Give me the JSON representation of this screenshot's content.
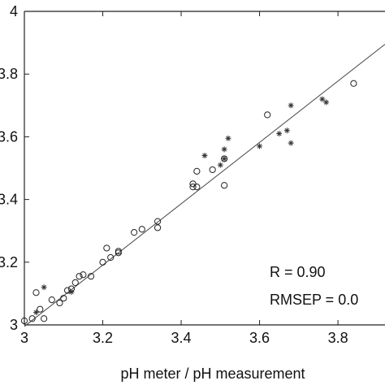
{
  "chart_data": {
    "type": "scatter",
    "title": "",
    "xlabel": "pH meter / pH measurement",
    "ylabel": "",
    "xlim": [
      3.0,
      3.92
    ],
    "ylim": [
      3.0,
      4.0
    ],
    "x_ticks": [
      "3",
      "3.2",
      "3.4",
      "3.6",
      "3.8"
    ],
    "y_ticks": [
      "3",
      "3.2",
      "3.4",
      "3.6",
      "3.8",
      "4"
    ],
    "grid": false,
    "series": [
      {
        "marker": "circle",
        "points": [
          [
            3.0,
            3.013
          ],
          [
            3.02,
            3.02
          ],
          [
            3.03,
            3.103
          ],
          [
            3.04,
            3.05
          ],
          [
            3.05,
            3.02
          ],
          [
            3.07,
            3.08
          ],
          [
            3.09,
            3.07
          ],
          [
            3.1,
            3.085
          ],
          [
            3.11,
            3.11
          ],
          [
            3.12,
            3.115
          ],
          [
            3.13,
            3.135
          ],
          [
            3.14,
            3.155
          ],
          [
            3.15,
            3.16
          ],
          [
            3.17,
            3.155
          ],
          [
            3.2,
            3.2
          ],
          [
            3.21,
            3.245
          ],
          [
            3.22,
            3.215
          ],
          [
            3.24,
            3.23
          ],
          [
            3.24,
            3.235
          ],
          [
            3.28,
            3.295
          ],
          [
            3.3,
            3.305
          ],
          [
            3.34,
            3.31
          ],
          [
            3.34,
            3.33
          ],
          [
            3.43,
            3.44
          ],
          [
            3.43,
            3.45
          ],
          [
            3.44,
            3.44
          ],
          [
            3.44,
            3.49
          ],
          [
            3.48,
            3.495
          ],
          [
            3.51,
            3.53
          ],
          [
            3.51,
            3.445
          ],
          [
            3.62,
            3.67
          ],
          [
            3.84,
            3.77
          ]
        ]
      },
      {
        "marker": "star",
        "points": [
          [
            3.03,
            3.04
          ],
          [
            3.05,
            3.12
          ],
          [
            3.12,
            3.105
          ],
          [
            3.46,
            3.54
          ],
          [
            3.5,
            3.51
          ],
          [
            3.51,
            3.56
          ],
          [
            3.51,
            3.53
          ],
          [
            3.52,
            3.595
          ],
          [
            3.6,
            3.57
          ],
          [
            3.65,
            3.61
          ],
          [
            3.67,
            3.62
          ],
          [
            3.68,
            3.58
          ],
          [
            3.68,
            3.7
          ],
          [
            3.76,
            3.72
          ],
          [
            3.77,
            3.71
          ]
        ]
      }
    ],
    "fit_line": {
      "x": [
        3.0,
        3.92
      ],
      "y": [
        2.995,
        3.895
      ]
    },
    "annotations": [
      "R = 0.90",
      "RMSEP = 0.0"
    ]
  }
}
